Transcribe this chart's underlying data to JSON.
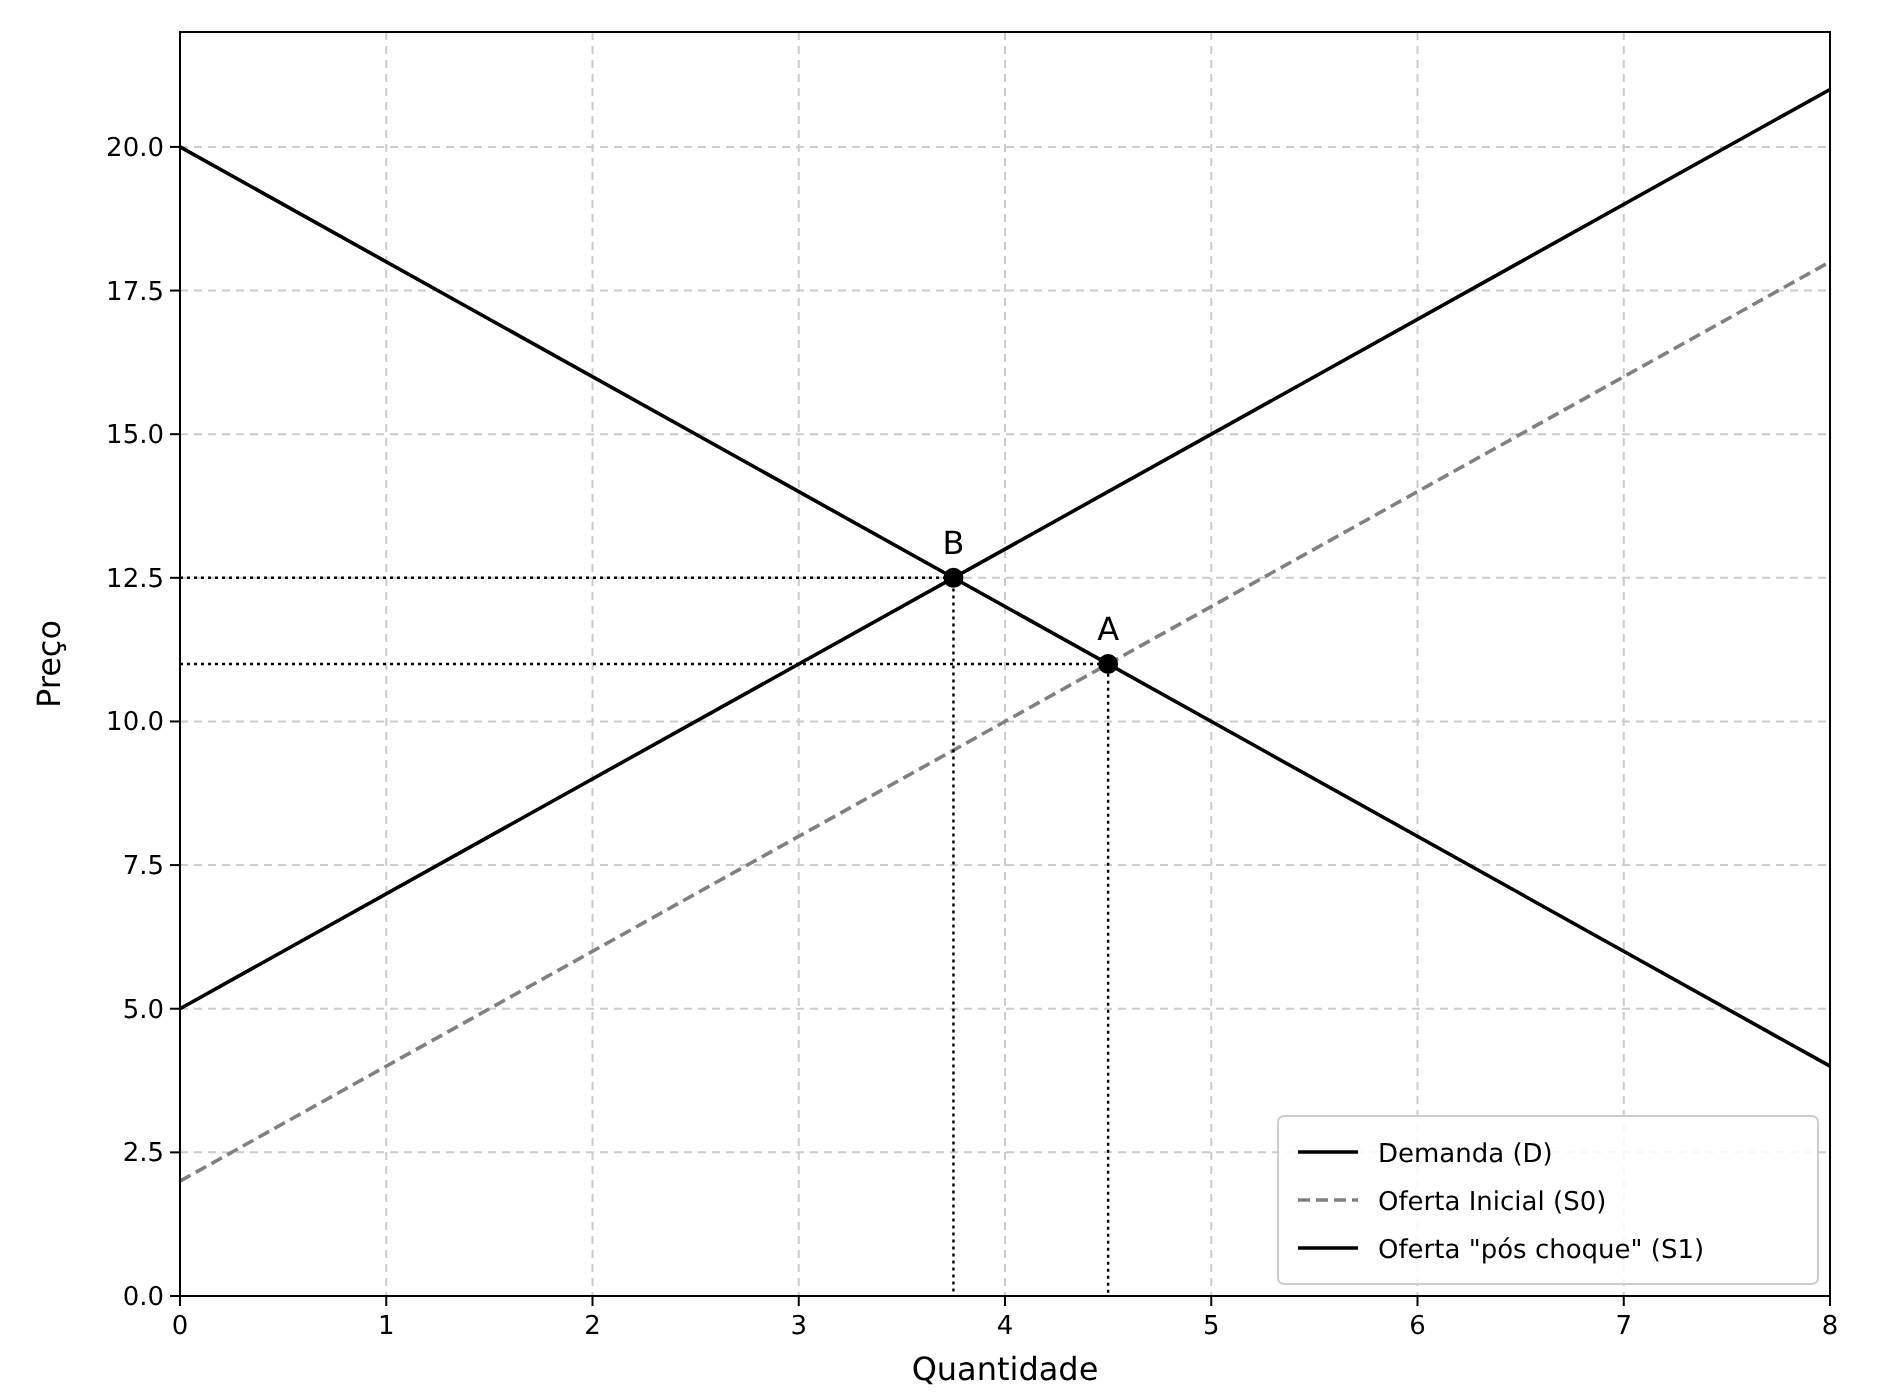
{
  "chart_data": {
    "type": "line",
    "xlabel": "Quantidade",
    "ylabel": "Preço",
    "xlim": [
      0,
      8
    ],
    "ylim": [
      0,
      22
    ],
    "xticks": [
      0,
      1,
      2,
      3,
      4,
      5,
      6,
      7,
      8
    ],
    "yticks": [
      {
        "value": 0,
        "label": "0.0"
      },
      {
        "value": 2.5,
        "label": "2.5"
      },
      {
        "value": 5,
        "label": "5.0"
      },
      {
        "value": 7.5,
        "label": "7.5"
      },
      {
        "value": 10,
        "label": "10.0"
      },
      {
        "value": 12.5,
        "label": "12.5"
      },
      {
        "value": 15,
        "label": "15.0"
      },
      {
        "value": 17.5,
        "label": "17.5"
      },
      {
        "value": 20,
        "label": "20.0"
      }
    ],
    "grid": true,
    "legend": "bottom right",
    "series": [
      {
        "name": "Demanda (D)",
        "color": "#000000",
        "x": [
          0,
          8
        ],
        "values": [
          20,
          4
        ],
        "line_style": "solid",
        "marker": "none"
      },
      {
        "name": "Oferta Inicial (S0)",
        "color": "#808080",
        "x": [
          0,
          8
        ],
        "values": [
          2,
          18
        ],
        "line_style": "dashed",
        "marker": "none"
      },
      {
        "name": "Oferta \"pós choque\" (S1)",
        "color": "#000000",
        "x": [
          0,
          8
        ],
        "values": [
          5,
          21
        ],
        "line_style": "solid",
        "marker": "none"
      },
      {
        "color": "#000000",
        "x": [
          0,
          4.5,
          4.5
        ],
        "values": [
          11,
          11,
          0
        ],
        "line_style": "dotted",
        "marker": "none"
      },
      {
        "color": "#000000",
        "x": [
          0,
          3.75,
          3.75
        ],
        "values": [
          12.5,
          12.5,
          0
        ],
        "line_style": "dotted",
        "marker": "none"
      },
      {
        "type": "scatter",
        "color": "#000000",
        "x": [
          4.5,
          3.75
        ],
        "values": [
          11,
          12.5
        ],
        "marker": "circle"
      }
    ],
    "annotations": [
      {
        "text": "A",
        "x": 4.5,
        "y": 11
      },
      {
        "text": "B",
        "x": 3.75,
        "y": 12.5
      }
    ]
  }
}
